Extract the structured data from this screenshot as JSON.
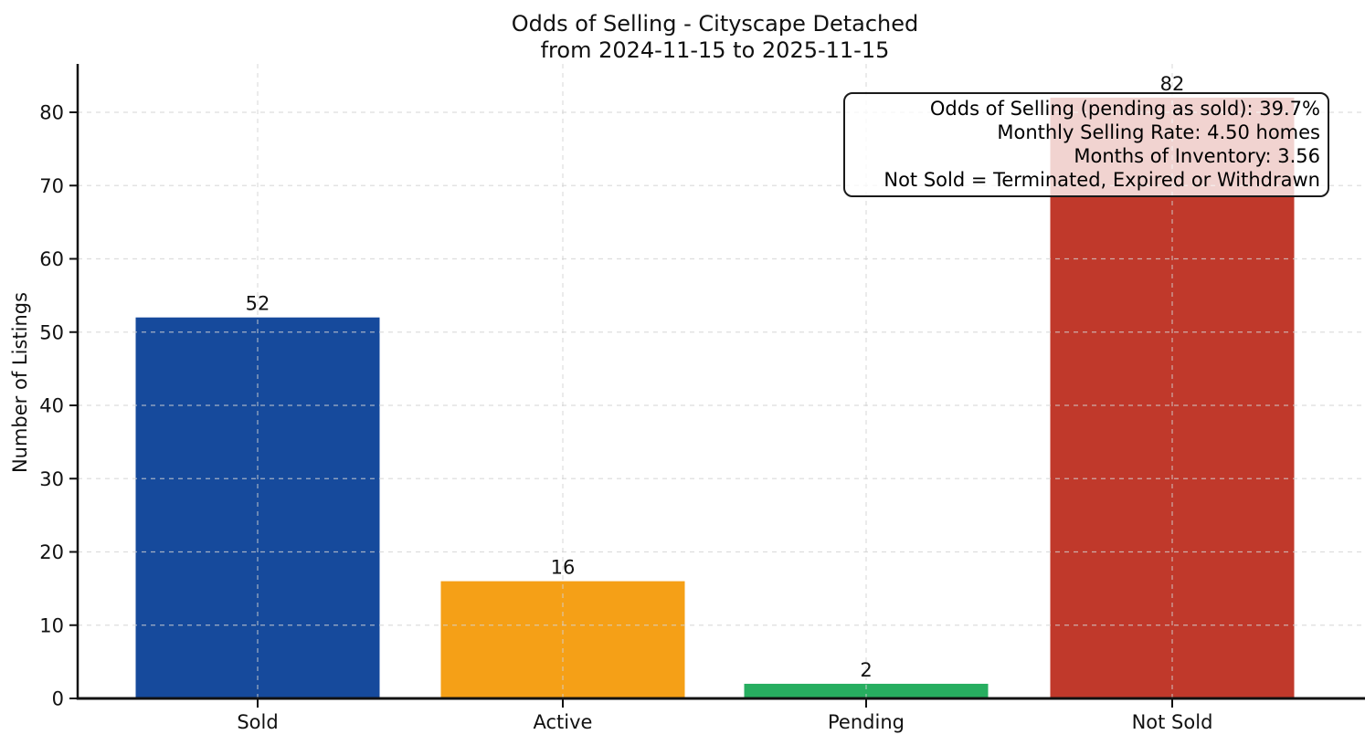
{
  "title": {
    "line1": "Odds of Selling - Cityscape Detached",
    "line2": "from 2024-11-15 to 2025-11-15"
  },
  "y_axis": {
    "label": "Number of Listings"
  },
  "annotation": {
    "lines": [
      "Odds of Selling (pending as sold): 39.7%",
      "Monthly Selling Rate: 4.50 homes",
      "Months of Inventory: 3.56",
      "Not Sold = Terminated, Expired or Withdrawn"
    ]
  },
  "chart_data": {
    "type": "bar",
    "title": "Odds of Selling - Cityscape Detached",
    "subtitle": "from 2024-11-15 to 2025-11-15",
    "categories": [
      "Sold",
      "Active",
      "Pending",
      "Not Sold"
    ],
    "values": [
      52,
      16,
      2,
      82
    ],
    "bar_colors": [
      "#164a9c",
      "#f5a017",
      "#27ae60",
      "#c0392b"
    ],
    "value_labels": [
      "52",
      "16",
      "2",
      "82"
    ],
    "xlabel": "",
    "ylabel": "Number of Listings",
    "ylim": [
      0,
      86.6
    ],
    "yticks": [
      0,
      10,
      20,
      30,
      40,
      50,
      60,
      70,
      80
    ],
    "grid": {
      "horizontal": true,
      "vertical": true,
      "style": "dashed",
      "color": "#d3d3d3"
    },
    "legend": "none",
    "annotation_box": {
      "position": "top-right",
      "lines": [
        "Odds of Selling (pending as sold): 39.7%",
        "Monthly Selling Rate: 4.50 homes",
        "Months of Inventory: 3.56",
        "Not Sold = Terminated, Expired or Withdrawn"
      ]
    }
  },
  "colors": {
    "background": "#ffffff",
    "spine": "#111111",
    "grid": "#d3d3d3",
    "text": "#111111"
  }
}
